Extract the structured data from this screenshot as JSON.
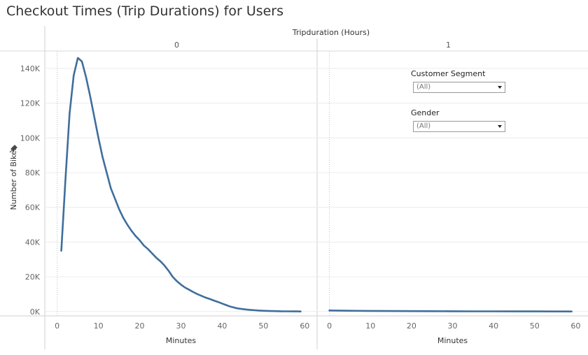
{
  "page": {
    "title": "Checkout Times (Trip Durations) for Users"
  },
  "chart_data": {
    "type": "line",
    "column_header_title": "Tripduration (Hours)",
    "panels": [
      {
        "header": "0",
        "xlabel": "Minutes",
        "x_ticks": [
          0,
          10,
          20,
          30,
          40,
          50,
          60
        ],
        "xlim": [
          -3,
          63
        ],
        "series": [
          {
            "values_x": [
              1,
              2,
              3,
              4,
              5,
              6,
              7,
              8,
              9,
              10,
              11,
              12,
              13,
              14,
              15,
              16,
              17,
              18,
              19,
              20,
              21,
              22,
              23,
              24,
              25,
              26,
              27,
              28,
              29,
              30,
              31,
              32,
              33,
              34,
              35,
              36,
              37,
              38,
              39,
              40,
              41,
              42,
              43,
              44,
              45,
              46,
              47,
              48,
              49,
              50,
              51,
              52,
              53,
              54,
              55,
              56,
              57,
              58,
              59
            ],
            "values_y": [
              35000,
              76000,
              114000,
              136000,
              146000,
              144000,
              135000,
              124000,
              112000,
              100000,
              89000,
              80000,
              71000,
              65000,
              59000,
              54000,
              50000,
              46500,
              43500,
              41000,
              38000,
              36000,
              33500,
              31000,
              29000,
              26500,
              23500,
              20000,
              17500,
              15500,
              13800,
              12500,
              11200,
              10000,
              9000,
              8000,
              7200,
              6300,
              5500,
              4600,
              3700,
              2800,
              2200,
              1700,
              1400,
              1100,
              900,
              700,
              550,
              450,
              350,
              280,
              220,
              170,
              130,
              100,
              80,
              60,
              45
            ]
          }
        ]
      },
      {
        "header": "1",
        "xlabel": "Minutes",
        "x_ticks": [
          0,
          10,
          20,
          30,
          40,
          50,
          60
        ],
        "xlim": [
          -3,
          63
        ],
        "series": [
          {
            "values_x": [
              0,
              5,
              10,
              15,
              20,
              25,
              30,
              35,
              40,
              45,
              50,
              55,
              59
            ],
            "values_y": [
              600,
              450,
              350,
              280,
              230,
              190,
              160,
              130,
              110,
              90,
              70,
              55,
              40
            ]
          }
        ]
      }
    ],
    "ylabel": "Number of Bikes",
    "y_ticks": [
      0,
      20000,
      40000,
      60000,
      80000,
      100000,
      120000,
      140000
    ],
    "y_tick_labels": [
      "0K",
      "20K",
      "40K",
      "60K",
      "80K",
      "100K",
      "120K",
      "140K"
    ],
    "ylim": [
      -2500,
      150000
    ],
    "grid": true,
    "line_color": "#3f6e9c"
  },
  "filters": [
    {
      "label": "Customer Segment",
      "value": "(All)"
    },
    {
      "label": "Gender",
      "value": "(All)"
    }
  ]
}
